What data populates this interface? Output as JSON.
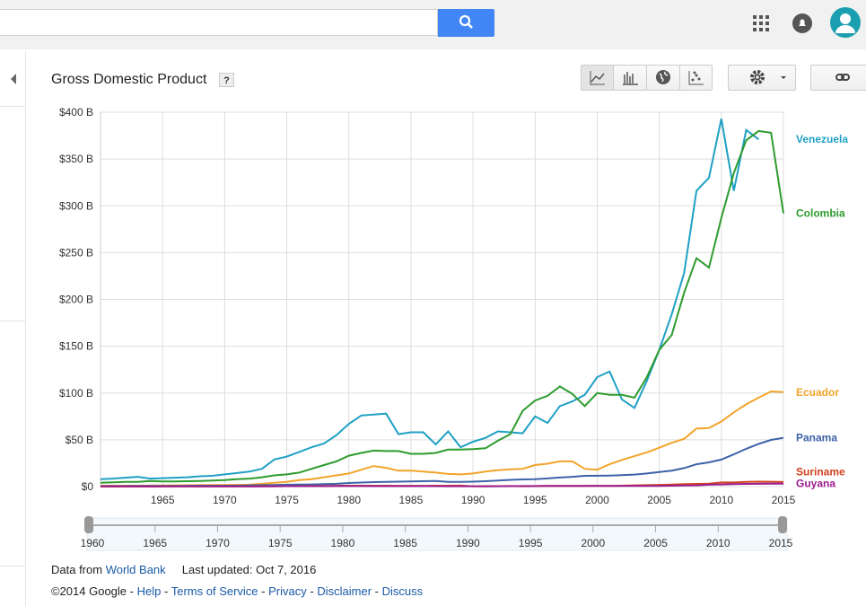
{
  "header": {
    "title": "Gross Domestic Product",
    "help_badge": "?"
  },
  "source": {
    "prefix": "Data from",
    "link": "World Bank",
    "updated": "Last updated: Oct 7, 2016"
  },
  "footer": {
    "copyright": "©2014 Google",
    "separator": "-",
    "links": [
      "Help",
      "Terms of Service",
      "Privacy",
      "Disclaimer",
      "Discuss"
    ]
  },
  "chart_data": {
    "type": "line",
    "x": [
      1960,
      1961,
      1962,
      1963,
      1964,
      1965,
      1966,
      1967,
      1968,
      1969,
      1970,
      1971,
      1972,
      1973,
      1974,
      1975,
      1976,
      1977,
      1978,
      1979,
      1980,
      1981,
      1982,
      1983,
      1984,
      1985,
      1986,
      1987,
      1988,
      1989,
      1990,
      1991,
      1992,
      1993,
      1994,
      1995,
      1996,
      1997,
      1998,
      1999,
      2000,
      2001,
      2002,
      2003,
      2004,
      2005,
      2006,
      2007,
      2008,
      2009,
      2010,
      2011,
      2012,
      2013,
      2014,
      2015
    ],
    "xlim": [
      1960,
      2015
    ],
    "xticks": [
      1965,
      1970,
      1975,
      1980,
      1985,
      1990,
      1995,
      2000,
      2005,
      2010,
      2015
    ],
    "slider_ticks": [
      1960,
      1965,
      1970,
      1975,
      1980,
      1985,
      1990,
      1995,
      2000,
      2005,
      2010,
      2015
    ],
    "ylim": [
      0,
      400
    ],
    "yticks": [
      {
        "value": 0,
        "label": "$0"
      },
      {
        "value": 50,
        "label": "$50 B"
      },
      {
        "value": 100,
        "label": "$100 B"
      },
      {
        "value": 150,
        "label": "$150 B"
      },
      {
        "value": 200,
        "label": "$200 B"
      },
      {
        "value": 250,
        "label": "$250 B"
      },
      {
        "value": 300,
        "label": "$300 B"
      },
      {
        "value": 350,
        "label": "$350 B"
      },
      {
        "value": 400,
        "label": "$400 B"
      }
    ],
    "grid": true,
    "series": [
      {
        "name": "Venezuela",
        "color": "#1fa0c4",
        "values": [
          8,
          8.5,
          9.5,
          10.5,
          8.5,
          9,
          9.5,
          10,
          11,
          11.5,
          13,
          14.5,
          16,
          19,
          29,
          32,
          37,
          42,
          46,
          55,
          67,
          76,
          77,
          78,
          56,
          58,
          58,
          45,
          59,
          42,
          48,
          52,
          59,
          58,
          57,
          75,
          68,
          86,
          91,
          98,
          117,
          123,
          93,
          84,
          113,
          146,
          184,
          228,
          316,
          330,
          393,
          316,
          381,
          371,
          null,
          null
        ]
      },
      {
        "name": "Colombia",
        "color": "#2e9b2e",
        "values": [
          4,
          4.5,
          5,
          5,
          6,
          5.5,
          5.5,
          5.8,
          6,
          6.5,
          7,
          8,
          8.5,
          10,
          12,
          13,
          15,
          19,
          23,
          27,
          33,
          36,
          38.5,
          38,
          38,
          35,
          35,
          36,
          39.5,
          39.5,
          40,
          41,
          49,
          56,
          81,
          92,
          97,
          107,
          99,
          86,
          100,
          98,
          98,
          95,
          117,
          146,
          162,
          207,
          244,
          234,
          287,
          335,
          370,
          380,
          378,
          292
        ]
      },
      {
        "name": "Ecuador",
        "color": "#f2a42a",
        "values": [
          1,
          1,
          1,
          1,
          1.1,
          1.2,
          1.3,
          1.4,
          1.5,
          1.6,
          1.7,
          1.8,
          2,
          3,
          4,
          5,
          7,
          8,
          10,
          12,
          14,
          18,
          22,
          20,
          17,
          17,
          16,
          15,
          13.5,
          13,
          14,
          16,
          17.5,
          18.5,
          19,
          23,
          24.5,
          27,
          27,
          19,
          18,
          24,
          28.5,
          32.5,
          36.5,
          41.5,
          46.8,
          51,
          62,
          62.5,
          69.5,
          79.3,
          87.9,
          95,
          101.7,
          100.9
        ]
      },
      {
        "name": "Panama",
        "color": "#3d62a8",
        "values": [
          0.5,
          0.55,
          0.6,
          0.65,
          0.7,
          0.75,
          0.8,
          0.9,
          0.95,
          1,
          1,
          1.1,
          1.3,
          1.5,
          1.7,
          2,
          2.1,
          2.3,
          2.7,
          3,
          3.8,
          4.3,
          4.8,
          5,
          5.3,
          5.5,
          5.8,
          5.9,
          5.1,
          5.1,
          5.3,
          5.8,
          6.5,
          7.2,
          7.7,
          8,
          8.7,
          9.7,
          10.5,
          11.5,
          11.6,
          11.8,
          12.3,
          12.9,
          14,
          15.5,
          17.1,
          19.8,
          23.9,
          25.9,
          28.9,
          34.4,
          40.4,
          45.6,
          49.9,
          52.1
        ]
      },
      {
        "name": "Suriname",
        "color": "#d0421f",
        "values": [
          0.1,
          0.1,
          0.1,
          0.1,
          0.1,
          0.2,
          0.2,
          0.2,
          0.2,
          0.2,
          0.3,
          0.3,
          0.3,
          0.4,
          0.4,
          0.5,
          0.6,
          0.7,
          0.8,
          0.9,
          1,
          1,
          1,
          1,
          0.9,
          0.9,
          0.9,
          1,
          1,
          1.1,
          0.4,
          0.5,
          0.5,
          0.6,
          0.4,
          0.5,
          0.7,
          0.8,
          0.8,
          0.8,
          0.9,
          0.8,
          1,
          1.3,
          1.5,
          1.8,
          2.2,
          2.6,
          2.9,
          3.1,
          4.4,
          4.4,
          5,
          5.3,
          5.2,
          4.9
        ]
      },
      {
        "name": "Guyana",
        "color": "#9b1d8f",
        "values": [
          0.2,
          0.2,
          0.2,
          0.2,
          0.2,
          0.2,
          0.2,
          0.2,
          0.2,
          0.2,
          0.3,
          0.3,
          0.3,
          0.3,
          0.4,
          0.5,
          0.5,
          0.5,
          0.5,
          0.6,
          0.6,
          0.6,
          0.5,
          0.5,
          0.5,
          0.5,
          0.5,
          0.5,
          0.4,
          0.4,
          0.4,
          0.3,
          0.4,
          0.5,
          0.6,
          0.6,
          0.7,
          0.7,
          0.7,
          0.7,
          0.7,
          0.7,
          0.7,
          0.7,
          0.8,
          0.8,
          1,
          1.2,
          1.3,
          2,
          2.3,
          2.6,
          2.9,
          3,
          3.1,
          3.2
        ]
      }
    ]
  }
}
